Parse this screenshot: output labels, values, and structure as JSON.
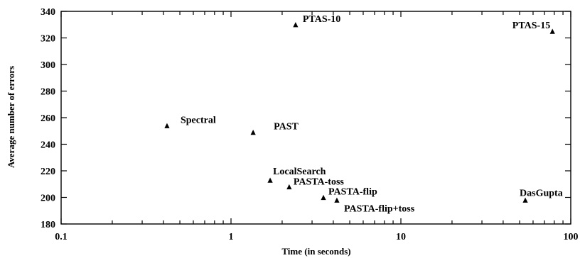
{
  "chart_data": {
    "type": "scatter",
    "title": "",
    "xlabel": "Time (in seconds)",
    "ylabel": "Average number of errors",
    "x_scale": "log",
    "xlim": [
      0.1,
      100
    ],
    "ylim": [
      180,
      340
    ],
    "x_ticks": [
      0.1,
      1,
      10,
      100
    ],
    "x_tick_labels": [
      "0.1",
      "1",
      "10",
      "100"
    ],
    "y_ticks": [
      180,
      200,
      220,
      240,
      260,
      280,
      300,
      320,
      340
    ],
    "y_tick_labels": [
      "180",
      "200",
      "220",
      "240",
      "260",
      "280",
      "300",
      "320",
      "340"
    ],
    "grid": false,
    "marker": "triangle",
    "points": [
      {
        "label": "PTAS-10",
        "x": 2.4,
        "y": 330
      },
      {
        "label": "PTAS-15",
        "x": 78,
        "y": 325
      },
      {
        "label": "Spectral",
        "x": 0.42,
        "y": 254
      },
      {
        "label": "PAST",
        "x": 1.35,
        "y": 249
      },
      {
        "label": "LocalSearch",
        "x": 1.7,
        "y": 213
      },
      {
        "label": "PASTA-toss",
        "x": 2.2,
        "y": 208
      },
      {
        "label": "PASTA-flip",
        "x": 3.5,
        "y": 200
      },
      {
        "label": "PASTA-flip+toss",
        "x": 4.2,
        "y": 198
      },
      {
        "label": "DasGupta",
        "x": 54,
        "y": 198
      }
    ],
    "colors": {
      "marker": "#000000",
      "text": "#000000",
      "axis": "#000000",
      "background": "#ffffff"
    }
  }
}
